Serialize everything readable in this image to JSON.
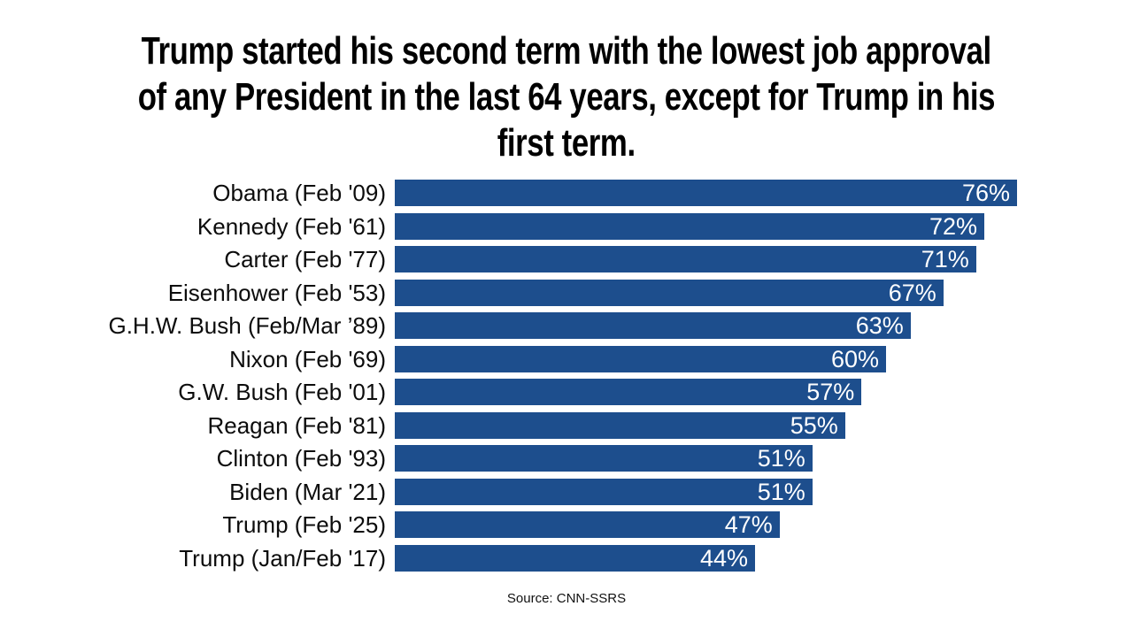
{
  "title_lines": [
    "Trump started his second term with the lowest job approval",
    "of any President in the last 64 years, except for Trump in his",
    "first term."
  ],
  "colors": {
    "bar": "#1d4e8d",
    "value_text": "#ffffff",
    "title_text": "#000000",
    "category_text": "#0c0c0c",
    "background": "#ffffff"
  },
  "chart_data": {
    "type": "bar",
    "orientation": "horizontal",
    "title": "Trump started his second term with the lowest job approval of any President in the last 64 years, except for Trump in his first term.",
    "categories": [
      "Obama (Feb '09)",
      "Kennedy (Feb '61)",
      "Carter (Feb '77)",
      "Eisenhower (Feb '53)",
      "G.H.W. Bush (Feb/Mar ’89)",
      "Nixon (Feb '69)",
      "G.W. Bush (Feb '01)",
      "Reagan (Feb '81)",
      "Clinton (Feb '93)",
      "Biden (Mar '21)",
      "Trump (Feb '25)",
      "Trump (Jan/Feb '17)"
    ],
    "values": [
      76,
      72,
      71,
      67,
      63,
      60,
      57,
      55,
      51,
      51,
      47,
      44
    ],
    "value_suffix": "%",
    "value_label_position": "inside-end",
    "category_label_position": "left",
    "xlabel": "",
    "ylabel": "",
    "axes_visible": false,
    "grid": false,
    "legend": "none",
    "source": "Source: CNN-SSRS"
  }
}
